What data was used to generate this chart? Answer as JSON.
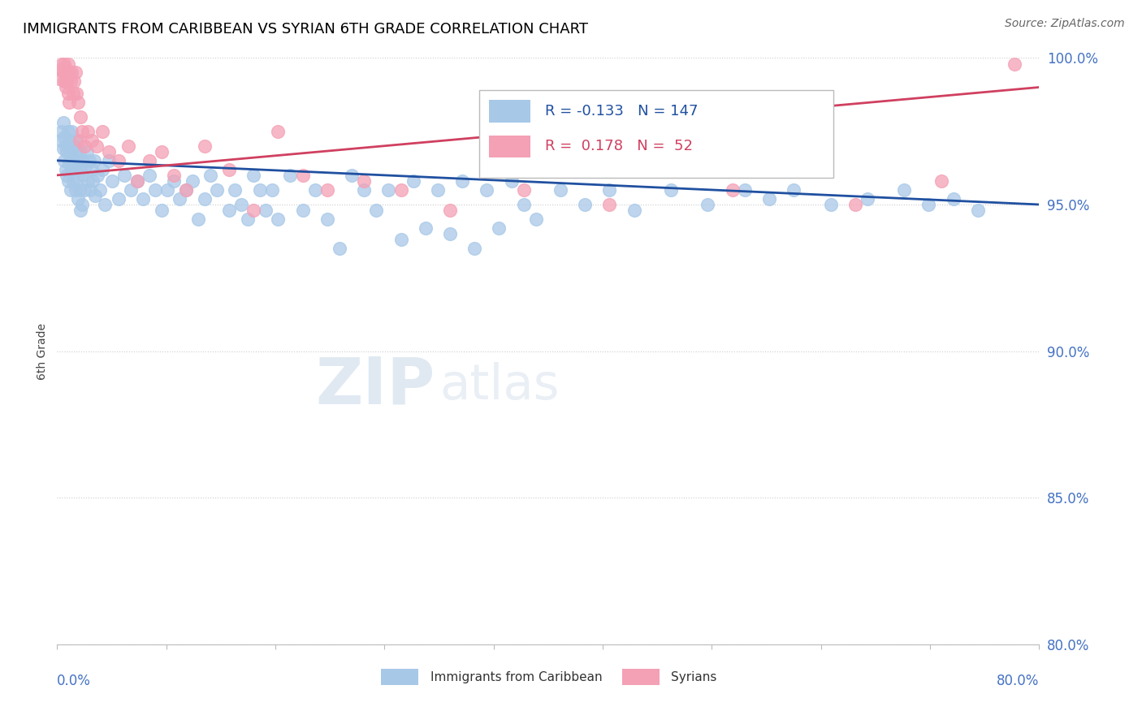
{
  "title": "IMMIGRANTS FROM CARIBBEAN VS SYRIAN 6TH GRADE CORRELATION CHART",
  "source": "Source: ZipAtlas.com",
  "ylabel": "6th Grade",
  "xlim": [
    0.0,
    80.0
  ],
  "ylim": [
    80.0,
    100.0
  ],
  "yticks": [
    80.0,
    85.0,
    90.0,
    95.0,
    100.0
  ],
  "blue_R": -0.133,
  "blue_N": 147,
  "pink_R": 0.178,
  "pink_N": 52,
  "blue_color": "#a8c8e8",
  "pink_color": "#f4a0b5",
  "blue_line_color": "#2050a0",
  "pink_line_color": "#d04060",
  "legend_blue_label": "Immigrants from Caribbean",
  "legend_pink_label": "Syrians",
  "watermark_zip": "ZIP",
  "watermark_atlas": "atlas",
  "blue_x": [
    0.3,
    0.4,
    0.5,
    0.5,
    0.6,
    0.6,
    0.7,
    0.7,
    0.8,
    0.8,
    0.9,
    0.9,
    1.0,
    1.0,
    1.1,
    1.1,
    1.2,
    1.2,
    1.3,
    1.3,
    1.4,
    1.4,
    1.5,
    1.5,
    1.6,
    1.6,
    1.7,
    1.7,
    1.8,
    1.8,
    1.9,
    1.9,
    2.0,
    2.0,
    2.1,
    2.2,
    2.3,
    2.4,
    2.5,
    2.6,
    2.7,
    2.8,
    2.9,
    3.0,
    3.1,
    3.3,
    3.5,
    3.7,
    3.9,
    4.2,
    4.5,
    5.0,
    5.5,
    6.0,
    6.5,
    7.0,
    7.5,
    8.0,
    8.5,
    9.0,
    9.5,
    10.0,
    10.5,
    11.0,
    11.5,
    12.0,
    12.5,
    13.0,
    14.0,
    14.5,
    15.0,
    15.5,
    16.0,
    16.5,
    17.0,
    17.5,
    18.0,
    19.0,
    20.0,
    21.0,
    22.0,
    23.0,
    24.0,
    25.0,
    26.0,
    27.0,
    28.0,
    29.0,
    30.0,
    31.0,
    32.0,
    33.0,
    34.0,
    35.0,
    36.0,
    37.0,
    38.0,
    39.0,
    41.0,
    43.0,
    45.0,
    47.0,
    50.0,
    53.0,
    56.0,
    58.0,
    60.0,
    63.0,
    66.0,
    69.0,
    71.0,
    73.0,
    75.0
  ],
  "blue_y": [
    97.2,
    97.5,
    97.8,
    96.9,
    97.3,
    96.5,
    97.0,
    96.2,
    96.8,
    96.0,
    97.5,
    95.8,
    97.2,
    96.4,
    96.8,
    95.5,
    97.5,
    96.2,
    96.5,
    95.8,
    97.0,
    96.3,
    96.8,
    95.5,
    97.2,
    95.8,
    96.5,
    95.2,
    96.8,
    95.5,
    96.2,
    94.8,
    96.5,
    95.0,
    96.0,
    95.5,
    96.3,
    96.8,
    95.8,
    96.5,
    95.5,
    96.2,
    95.8,
    96.5,
    95.3,
    96.0,
    95.5,
    96.2,
    95.0,
    96.5,
    95.8,
    95.2,
    96.0,
    95.5,
    95.8,
    95.2,
    96.0,
    95.5,
    94.8,
    95.5,
    95.8,
    95.2,
    95.5,
    95.8,
    94.5,
    95.2,
    96.0,
    95.5,
    94.8,
    95.5,
    95.0,
    94.5,
    96.0,
    95.5,
    94.8,
    95.5,
    94.5,
    96.0,
    94.8,
    95.5,
    94.5,
    93.5,
    96.0,
    95.5,
    94.8,
    95.5,
    93.8,
    95.8,
    94.2,
    95.5,
    94.0,
    95.8,
    93.5,
    95.5,
    94.2,
    95.8,
    95.0,
    94.5,
    95.5,
    95.0,
    95.5,
    94.8,
    95.5,
    95.0,
    95.5,
    95.2,
    95.5,
    95.0,
    95.2,
    95.5,
    95.0,
    95.2,
    94.8
  ],
  "pink_x": [
    0.2,
    0.3,
    0.4,
    0.5,
    0.6,
    0.6,
    0.7,
    0.7,
    0.8,
    0.8,
    0.9,
    0.9,
    1.0,
    1.0,
    1.1,
    1.2,
    1.3,
    1.4,
    1.5,
    1.6,
    1.7,
    1.8,
    1.9,
    2.0,
    2.2,
    2.5,
    2.8,
    3.2,
    3.7,
    4.2,
    5.0,
    5.8,
    6.5,
    7.5,
    8.5,
    9.5,
    10.5,
    12.0,
    14.0,
    16.0,
    18.0,
    20.0,
    22.0,
    25.0,
    28.0,
    32.0,
    38.0,
    45.0,
    55.0,
    65.0,
    72.0,
    78.0
  ],
  "pink_y": [
    99.3,
    99.6,
    99.8,
    99.5,
    99.2,
    99.8,
    99.5,
    99.0,
    99.6,
    99.2,
    99.8,
    98.8,
    99.5,
    98.5,
    99.2,
    99.5,
    98.8,
    99.2,
    99.5,
    98.8,
    98.5,
    97.2,
    98.0,
    97.5,
    97.0,
    97.5,
    97.2,
    97.0,
    97.5,
    96.8,
    96.5,
    97.0,
    95.8,
    96.5,
    96.8,
    96.0,
    95.5,
    97.0,
    96.2,
    94.8,
    97.5,
    96.0,
    95.5,
    95.8,
    95.5,
    94.8,
    95.5,
    95.0,
    95.5,
    95.0,
    95.8,
    99.8
  ]
}
